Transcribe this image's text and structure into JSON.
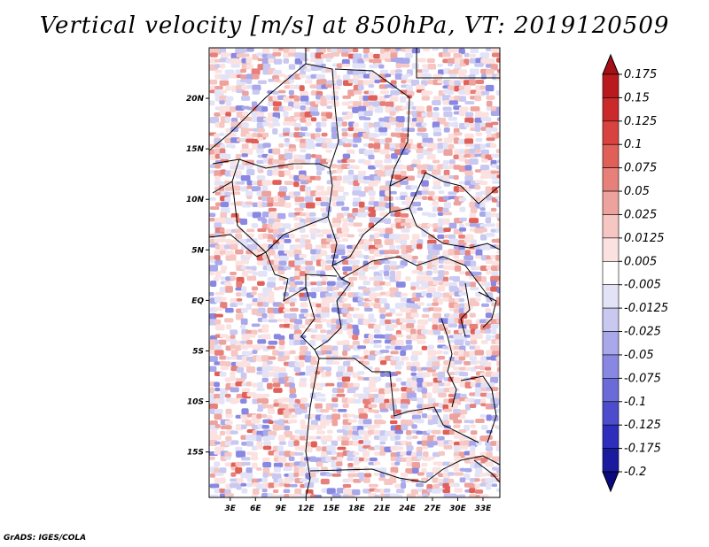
{
  "title": "Vertical velocity [m/s] at 850hPa, VT: 2019120509",
  "credit": "GrADS: IGES/COLA",
  "map": {
    "lat_ticks": [
      "20N",
      "15N",
      "10N",
      "5N",
      "EQ",
      "5S",
      "10S",
      "15S"
    ],
    "lon_ticks": [
      "3E",
      "6E",
      "9E",
      "12E",
      "15E",
      "18E",
      "21E",
      "24E",
      "27E",
      "30E",
      "33E"
    ],
    "lat_values": [
      20,
      15,
      10,
      5,
      0,
      -5,
      -10,
      -15
    ],
    "lon_values": [
      3,
      6,
      9,
      12,
      15,
      18,
      21,
      24,
      27,
      30,
      33
    ],
    "lon_range": [
      0.5,
      35
    ],
    "lat_range": [
      -19.5,
      25
    ]
  },
  "colorbar": {
    "labels": [
      "0.175",
      "0.15",
      "0.125",
      "0.1",
      "0.075",
      "0.05",
      "0.025",
      "0.0125",
      "0.005",
      "-0.005",
      "-0.0125",
      "-0.025",
      "-0.05",
      "-0.075",
      "-0.1",
      "-0.125",
      "-0.175",
      "-0.2"
    ],
    "colors": [
      "#a50f15",
      "#b81a1e",
      "#cb2a2a",
      "#d9433f",
      "#e05f57",
      "#e7807a",
      "#eea29d",
      "#f5c6c2",
      "#fbe2e0",
      "#ffffff",
      "#e3e3f8",
      "#c8c8f1",
      "#a8a8ea",
      "#8888e2",
      "#6a6ad8",
      "#4c4ccc",
      "#2e2ebd",
      "#1a1a9e",
      "#0a0a80"
    ]
  }
}
